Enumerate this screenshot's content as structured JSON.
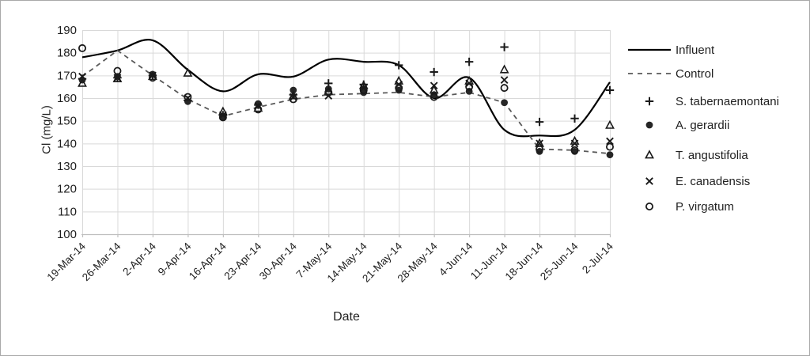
{
  "figure": {
    "x_axis_title": "Date",
    "y_axis_title": "Cl (mg/L)"
  },
  "chart_data": {
    "type": "line",
    "title": "",
    "xlabel": "Date",
    "ylabel": "Cl (mg/L)",
    "ylim": [
      100,
      190
    ],
    "ytick_step": 10,
    "grid": true,
    "legend_position": "right",
    "categories": [
      "19-Mar-14",
      "26-Mar-14",
      "2-Apr-14",
      "9-Apr-14",
      "16-Apr-14",
      "23-Apr-14",
      "30-Apr-14",
      "7-May-14",
      "14-May-14",
      "21-May-14",
      "28-May-14",
      "4-Jun-14",
      "11-Jun-14",
      "18-Jun-14",
      "25-Jun-14",
      "2-Jul-14"
    ],
    "series": [
      {
        "name": "Influent",
        "kind": "line",
        "line_style": "solid-smooth",
        "color": "#000000",
        "values": [
          178,
          181,
          185.5,
          172.5,
          163,
          170.5,
          169.5,
          177,
          176,
          174.5,
          160,
          169,
          146,
          143.5,
          146,
          167
        ]
      },
      {
        "name": "Control",
        "kind": "line",
        "line_style": "dashed",
        "color": "#595959",
        "values": [
          169.5,
          181,
          170,
          159.5,
          152,
          156,
          159.5,
          161.5,
          162,
          162.5,
          160.5,
          162.5,
          158,
          137.5,
          137,
          135.5
        ]
      },
      {
        "name": "S. tabernaemontani",
        "kind": "scatter",
        "marker": "plus",
        "color": "#1a1a1a",
        "values": [
          168.5,
          169,
          170,
          159,
          152.5,
          157,
          161.5,
          166.5,
          166,
          174.5,
          171.5,
          176,
          182.5,
          149.5,
          151,
          163.5
        ]
      },
      {
        "name": "A. gerardii",
        "kind": "scatter",
        "marker": "circle-filled",
        "color": "#262626",
        "values": [
          168,
          169.5,
          170.5,
          158.5,
          151.5,
          157.5,
          163.5,
          164,
          162.5,
          163.5,
          161.5,
          163,
          158,
          136.5,
          136.5,
          135
        ]
      },
      {
        "name": "T. angustifolia",
        "kind": "scatter",
        "marker": "triangle-open",
        "color": "#1a1a1a",
        "values": [
          166.5,
          168.5,
          169.5,
          171,
          154,
          155.5,
          161,
          163,
          165.5,
          167.5,
          163.5,
          167.5,
          172.5,
          140,
          141,
          148
        ]
      },
      {
        "name": "E. canadensis",
        "kind": "scatter",
        "marker": "x",
        "color": "#1a1a1a",
        "values": [
          169.5,
          169,
          170,
          160,
          152.5,
          156.5,
          160.5,
          161,
          164.5,
          166,
          165.5,
          166.5,
          168,
          140,
          140,
          141
        ]
      },
      {
        "name": "P. virgatum",
        "kind": "scatter",
        "marker": "circle-open",
        "color": "#1a1a1a",
        "values": [
          182,
          172,
          169,
          160.5,
          151.5,
          155,
          159.5,
          162.5,
          163.5,
          164.5,
          160.5,
          165,
          164.5,
          137.5,
          137,
          138.5
        ]
      }
    ]
  }
}
